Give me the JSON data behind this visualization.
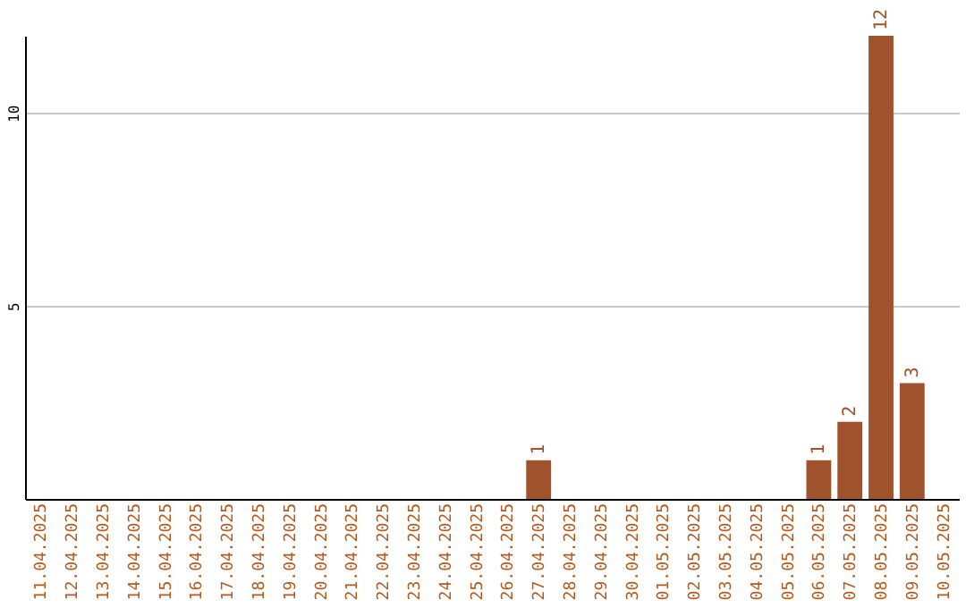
{
  "chart_data": {
    "type": "bar",
    "categories": [
      "11.04.2025",
      "12.04.2025",
      "13.04.2025",
      "14.04.2025",
      "15.04.2025",
      "16.04.2025",
      "17.04.2025",
      "18.04.2025",
      "19.04.2025",
      "20.04.2025",
      "21.04.2025",
      "22.04.2025",
      "23.04.2025",
      "24.04.2025",
      "25.04.2025",
      "26.04.2025",
      "27.04.2025",
      "28.04.2025",
      "29.04.2025",
      "30.04.2025",
      "01.05.2025",
      "02.05.2025",
      "03.05.2025",
      "04.05.2025",
      "05.05.2025",
      "06.05.2025",
      "07.05.2025",
      "08.05.2025",
      "09.05.2025",
      "10.05.2025"
    ],
    "values": [
      0,
      0,
      0,
      0,
      0,
      0,
      0,
      0,
      0,
      0,
      0,
      0,
      0,
      0,
      0,
      0,
      1,
      0,
      0,
      0,
      0,
      0,
      0,
      0,
      0,
      1,
      2,
      12,
      3,
      0
    ],
    "value_labels": [
      null,
      null,
      null,
      null,
      null,
      null,
      null,
      null,
      null,
      null,
      null,
      null,
      null,
      null,
      null,
      null,
      "1",
      null,
      null,
      null,
      null,
      null,
      null,
      null,
      null,
      "1",
      "2",
      "12",
      "3",
      null
    ],
    "color": "#a0522d",
    "ylim": [
      0,
      12
    ],
    "yticks": [
      5,
      10
    ],
    "grid": "y"
  }
}
